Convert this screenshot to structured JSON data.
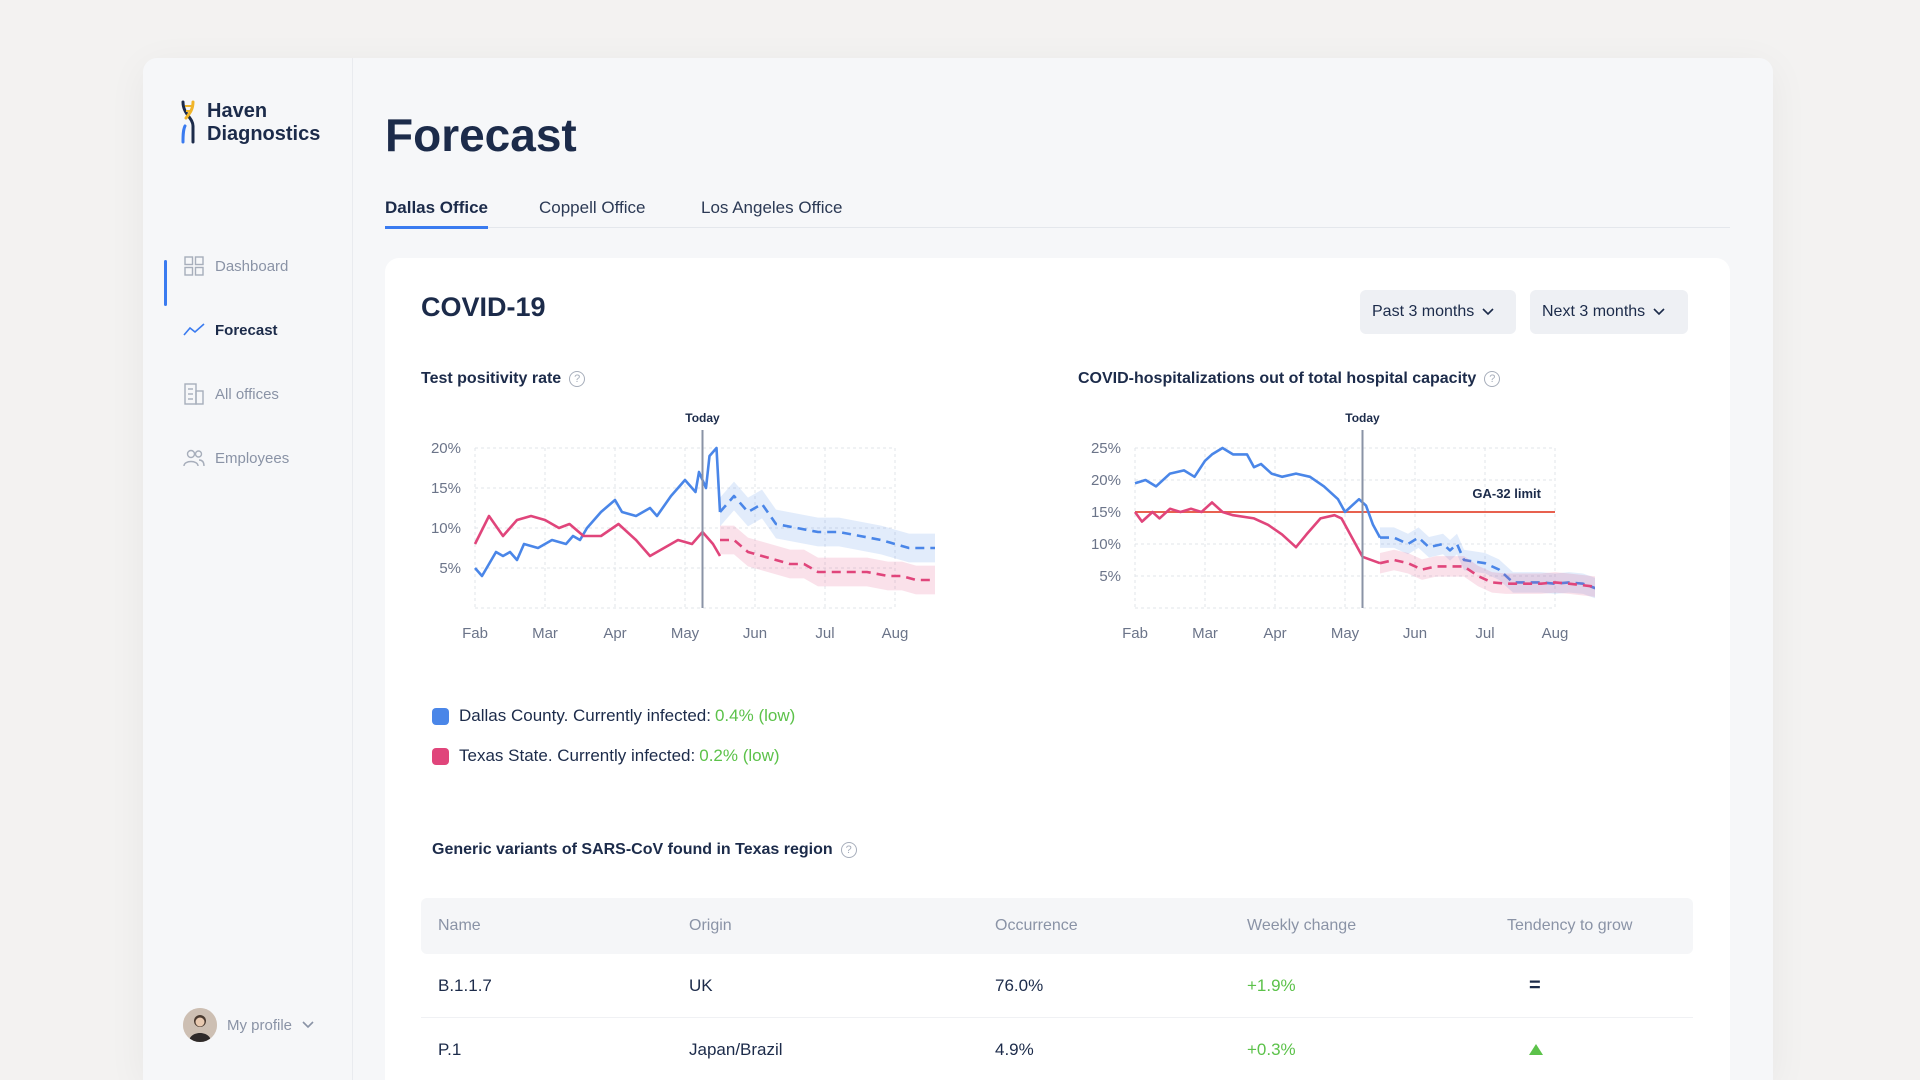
{
  "brand": {
    "line1": "Haven",
    "line2": "Diagnostics"
  },
  "sidebar": {
    "items": [
      {
        "label": "Dashboard",
        "icon": "dashboard-icon",
        "active": false
      },
      {
        "label": "Forecast",
        "icon": "trend-icon",
        "active": true
      },
      {
        "label": "All offices",
        "icon": "building-icon",
        "active": false
      },
      {
        "label": "Employees",
        "icon": "users-icon",
        "active": false
      }
    ],
    "profile_label": "My profile"
  },
  "page": {
    "title": "Forecast"
  },
  "tabs": [
    {
      "label": "Dallas Office",
      "active": true
    },
    {
      "label": "Coppell Office",
      "active": false
    },
    {
      "label": "Los Angeles Office",
      "active": false
    }
  ],
  "card": {
    "title": "COVID-19",
    "filters": {
      "past": "Past 3 months",
      "next": "Next 3 months"
    }
  },
  "colors": {
    "blue": "#4a86e8",
    "pink": "#e0457b",
    "green": "#5cc24a",
    "accent": "#3a7bf0",
    "limit": "#e8614f"
  },
  "legend": {
    "dallas": {
      "label": "Dallas County. Currently infected:",
      "value": "0.4% (low)"
    },
    "texas": {
      "label": "Texas State. Currently infected:",
      "value": "0.2% (low)"
    }
  },
  "chart_data": [
    {
      "type": "line",
      "title": "Test positivity rate",
      "categories": [
        "Fab",
        "Mar",
        "Apr",
        "May",
        "Jun",
        "Jul",
        "Aug"
      ],
      "yticks": [
        "5%",
        "10%",
        "15%",
        "20%"
      ],
      "ylim": [
        0,
        20
      ],
      "today_label": "Today",
      "today_x": 3.25,
      "series": [
        {
          "color": "blue",
          "actual": [
            [
              0,
              5
            ],
            [
              0.1,
              4
            ],
            [
              0.3,
              7
            ],
            [
              0.4,
              6.5
            ],
            [
              0.5,
              7
            ],
            [
              0.6,
              6
            ],
            [
              0.7,
              8
            ],
            [
              0.9,
              7.5
            ],
            [
              1.1,
              8.5
            ],
            [
              1.3,
              8
            ],
            [
              1.4,
              9
            ],
            [
              1.5,
              8.5
            ],
            [
              1.6,
              10
            ],
            [
              1.8,
              12
            ],
            [
              2,
              13.5
            ],
            [
              2.1,
              12
            ],
            [
              2.3,
              11.5
            ],
            [
              2.5,
              12.5
            ],
            [
              2.6,
              11.5
            ],
            [
              2.8,
              14
            ],
            [
              3,
              16
            ],
            [
              3.15,
              14.5
            ],
            [
              3.2,
              17
            ],
            [
              3.3,
              15
            ],
            [
              3.35,
              19
            ],
            [
              3.45,
              20
            ],
            [
              3.5,
              12
            ]
          ],
          "forecast": [
            [
              3.5,
              12
            ],
            [
              3.7,
              14
            ],
            [
              3.9,
              12
            ],
            [
              4.1,
              13
            ],
            [
              4.3,
              10.5
            ],
            [
              4.6,
              10
            ],
            [
              4.9,
              9.5
            ],
            [
              5.2,
              9.5
            ],
            [
              5.5,
              9
            ],
            [
              5.8,
              8.5
            ],
            [
              6,
              8
            ],
            [
              6.2,
              7.5
            ],
            [
              6.6,
              7.5
            ]
          ],
          "band": 1.8
        },
        {
          "color": "pink",
          "actual": [
            [
              0,
              8
            ],
            [
              0.2,
              11.5
            ],
            [
              0.4,
              9
            ],
            [
              0.6,
              11
            ],
            [
              0.8,
              11.5
            ],
            [
              1,
              11
            ],
            [
              1.2,
              10
            ],
            [
              1.35,
              10.5
            ],
            [
              1.55,
              9
            ],
            [
              1.8,
              9
            ],
            [
              2.05,
              10.5
            ],
            [
              2.3,
              8.5
            ],
            [
              2.5,
              6.5
            ],
            [
              2.7,
              7.5
            ],
            [
              2.9,
              8.5
            ],
            [
              3.1,
              8
            ],
            [
              3.25,
              9.5
            ],
            [
              3.4,
              8
            ],
            [
              3.5,
              6.5
            ]
          ],
          "forecast": [
            [
              3.5,
              8.5
            ],
            [
              3.7,
              8.5
            ],
            [
              3.9,
              7
            ],
            [
              4.1,
              6.5
            ],
            [
              4.3,
              6
            ],
            [
              4.5,
              5.5
            ],
            [
              4.7,
              5.5
            ],
            [
              4.9,
              4.5
            ],
            [
              5.1,
              4.5
            ],
            [
              5.3,
              4.5
            ],
            [
              5.6,
              4.5
            ],
            [
              5.9,
              4
            ],
            [
              6.1,
              4
            ],
            [
              6.3,
              3.5
            ],
            [
              6.6,
              3.5
            ]
          ],
          "band": 1.8
        }
      ]
    },
    {
      "type": "line",
      "title": "COVID-hospitalizations out of total hospital capacity",
      "categories": [
        "Fab",
        "Mar",
        "Apr",
        "May",
        "Jun",
        "Jul",
        "Aug"
      ],
      "yticks": [
        "5%",
        "10%",
        "15%",
        "20%",
        "25%"
      ],
      "ylim": [
        0,
        25
      ],
      "today_label": "Today",
      "today_x": 3.25,
      "limit": {
        "label": "GA-32 limit",
        "value": 15
      },
      "series": [
        {
          "color": "blue",
          "actual": [
            [
              0,
              19.5
            ],
            [
              0.15,
              20
            ],
            [
              0.3,
              19
            ],
            [
              0.5,
              21
            ],
            [
              0.7,
              21.5
            ],
            [
              0.85,
              20.5
            ],
            [
              1,
              23
            ],
            [
              1.1,
              24
            ],
            [
              1.25,
              25
            ],
            [
              1.4,
              24
            ],
            [
              1.6,
              24
            ],
            [
              1.7,
              22
            ],
            [
              1.8,
              22.5
            ],
            [
              1.95,
              21
            ],
            [
              2.1,
              20.5
            ],
            [
              2.3,
              21
            ],
            [
              2.5,
              20.5
            ],
            [
              2.7,
              19
            ],
            [
              2.9,
              17
            ],
            [
              3.0,
              15
            ],
            [
              3.1,
              16
            ],
            [
              3.2,
              17
            ],
            [
              3.3,
              16
            ],
            [
              3.4,
              13
            ],
            [
              3.5,
              11
            ]
          ],
          "forecast": [
            [
              3.5,
              11
            ],
            [
              3.7,
              11
            ],
            [
              3.9,
              10
            ],
            [
              4.05,
              11
            ],
            [
              4.2,
              9.5
            ],
            [
              4.4,
              10
            ],
            [
              4.5,
              9
            ],
            [
              4.6,
              10
            ],
            [
              4.7,
              7.5
            ],
            [
              5,
              7
            ],
            [
              5.2,
              6
            ],
            [
              5.4,
              4
            ],
            [
              5.6,
              4
            ],
            [
              5.8,
              4
            ],
            [
              6,
              3.8
            ],
            [
              6.2,
              4
            ],
            [
              6.4,
              3.8
            ],
            [
              6.6,
              3
            ]
          ],
          "band": 1.6
        },
        {
          "color": "pink",
          "actual": [
            [
              0,
              15
            ],
            [
              0.1,
              13.5
            ],
            [
              0.25,
              15
            ],
            [
              0.35,
              14
            ],
            [
              0.5,
              15.5
            ],
            [
              0.65,
              15
            ],
            [
              0.8,
              15.5
            ],
            [
              0.95,
              15
            ],
            [
              1.1,
              16.5
            ],
            [
              1.25,
              15
            ],
            [
              1.4,
              14.5
            ],
            [
              1.7,
              14
            ],
            [
              1.9,
              13
            ],
            [
              2.1,
              11.5
            ],
            [
              2.3,
              9.5
            ],
            [
              2.45,
              11.5
            ],
            [
              2.65,
              14
            ],
            [
              2.85,
              14.5
            ],
            [
              2.95,
              14
            ],
            [
              3.1,
              11
            ],
            [
              3.25,
              8
            ],
            [
              3.5,
              7
            ]
          ],
          "forecast": [
            [
              3.5,
              7
            ],
            [
              3.7,
              7.5
            ],
            [
              3.9,
              7
            ],
            [
              4.1,
              6
            ],
            [
              4.3,
              6.5
            ],
            [
              4.5,
              6.5
            ],
            [
              4.7,
              6.5
            ],
            [
              4.9,
              5
            ],
            [
              5.1,
              4
            ],
            [
              5.3,
              3.8
            ],
            [
              5.5,
              3.8
            ],
            [
              5.8,
              3.8
            ],
            [
              6,
              4
            ],
            [
              6.2,
              3.8
            ],
            [
              6.6,
              3.3
            ]
          ],
          "band": 1.6
        }
      ]
    }
  ],
  "variants": {
    "title": "Generic variants of SARS-CoV found in Texas region",
    "columns": [
      "Name",
      "Origin",
      "Occurrence",
      "Weekly change",
      "Tendency to grow"
    ],
    "rows": [
      {
        "name": "B.1.1.7",
        "origin": "UK",
        "occurrence": "76.0%",
        "change": "+1.9%",
        "tendency": "="
      },
      {
        "name": "P.1",
        "origin": "Japan/Brazil",
        "occurrence": "4.9%",
        "change": "+0.3%",
        "tendency": "up"
      }
    ]
  }
}
